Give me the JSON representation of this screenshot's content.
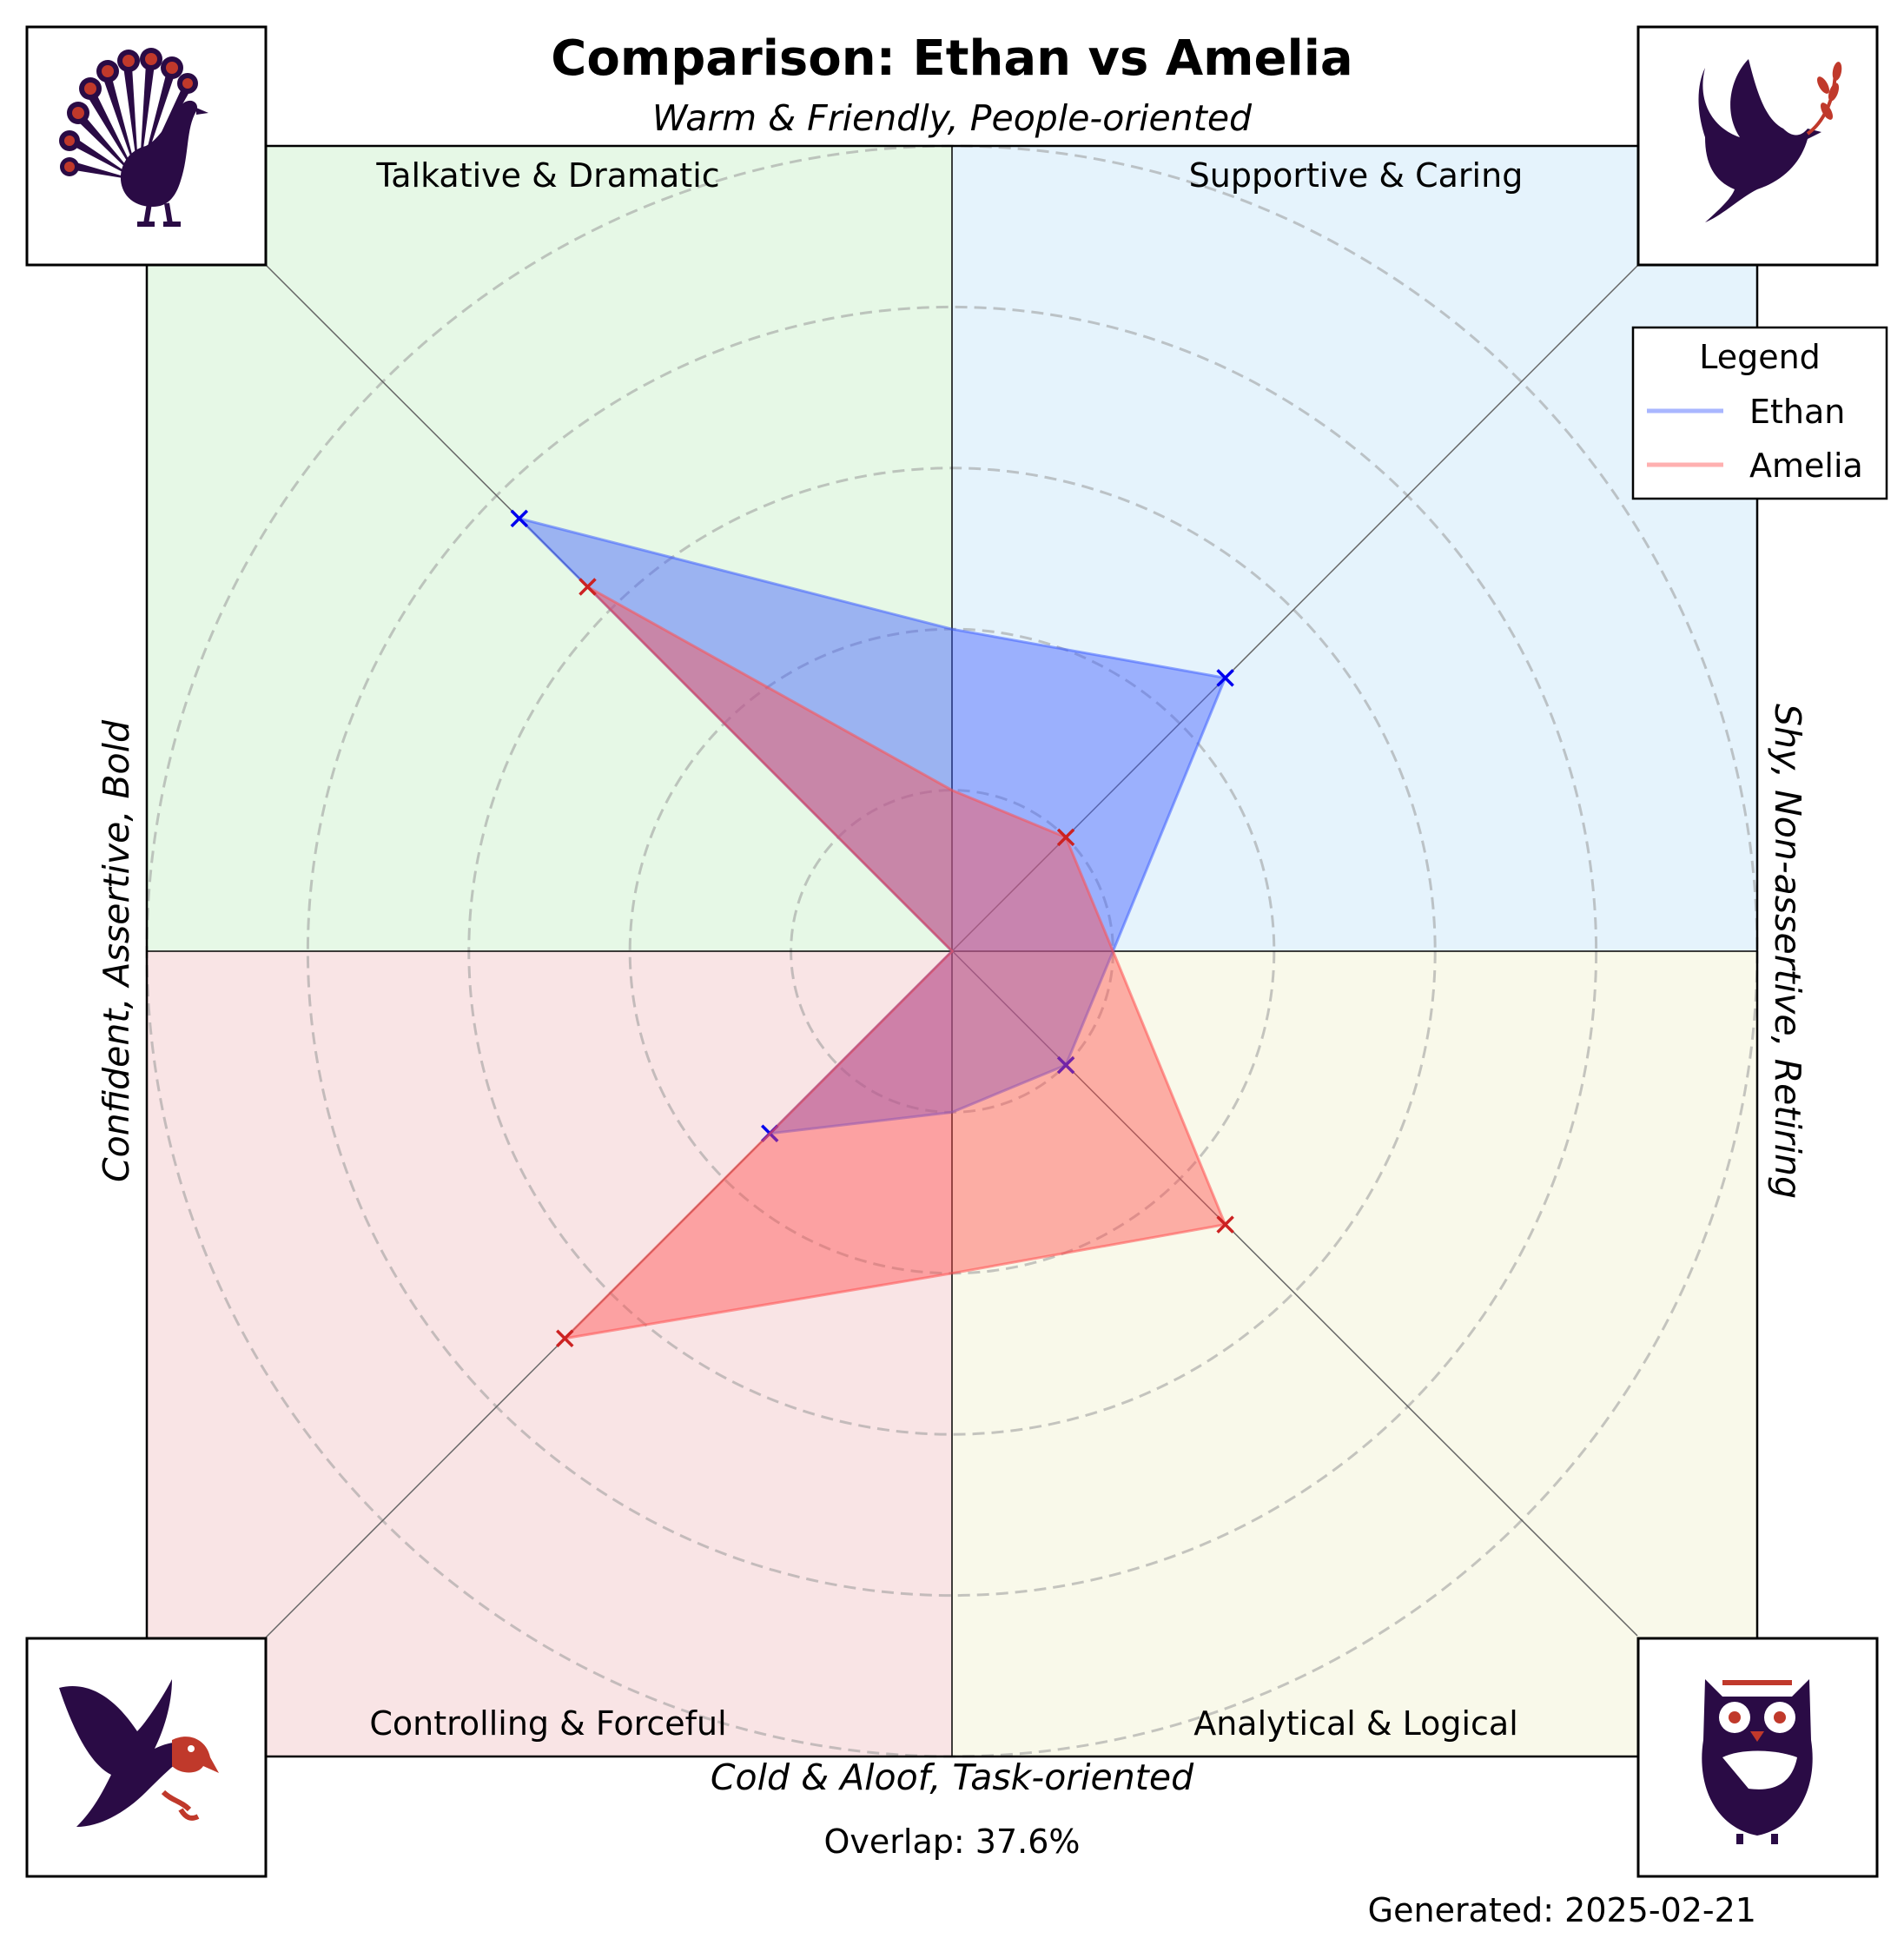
{
  "chart_data": {
    "type": "radar",
    "title": "Comparison: Ethan vs Amelia",
    "axis_labels": {
      "top": "Warm & Friendly, People-oriented",
      "bottom": "Cold & Aloof, Task-oriented",
      "left": "Confident, Assertive, Bold",
      "right": "Shy, Non-assertive, Retiring"
    },
    "quadrants": [
      {
        "label": "Talkative & Dramatic",
        "position": "top-left",
        "color": "#e6f8e6",
        "icon": "peacock-icon"
      },
      {
        "label": "Supportive & Caring",
        "position": "top-right",
        "color": "#e5f3fc",
        "icon": "dove-icon"
      },
      {
        "label": "Controlling & Forceful",
        "position": "bottom-left",
        "color": "#f9e4e5",
        "icon": "eagle-icon"
      },
      {
        "label": "Analytical & Logical",
        "position": "bottom-right",
        "color": "#f9f9ea",
        "icon": "owl-icon"
      }
    ],
    "directions": [
      "top-right",
      "right",
      "bottom-right",
      "bottom",
      "bottom-left",
      "left",
      "top-left",
      "top"
    ],
    "rlim": [
      0,
      5
    ],
    "rings": [
      1,
      2,
      3,
      4,
      5
    ],
    "grid": true,
    "legend": {
      "title": "Legend",
      "position": "top-right"
    },
    "series": [
      {
        "name": "Ethan",
        "color": "#4060ff",
        "values": [
          2.4,
          1.0,
          1.0,
          1.0,
          1.6,
          0.0,
          3.8,
          2.0
        ]
      },
      {
        "name": "Amelia",
        "color": "#ff5050",
        "values": [
          1.0,
          1.0,
          2.4,
          2.0,
          3.4,
          0.0,
          3.2,
          1.0
        ]
      }
    ]
  },
  "overlap_text": "Overlap: 37.6%",
  "generated_text": "Generated: 2025-02-21"
}
